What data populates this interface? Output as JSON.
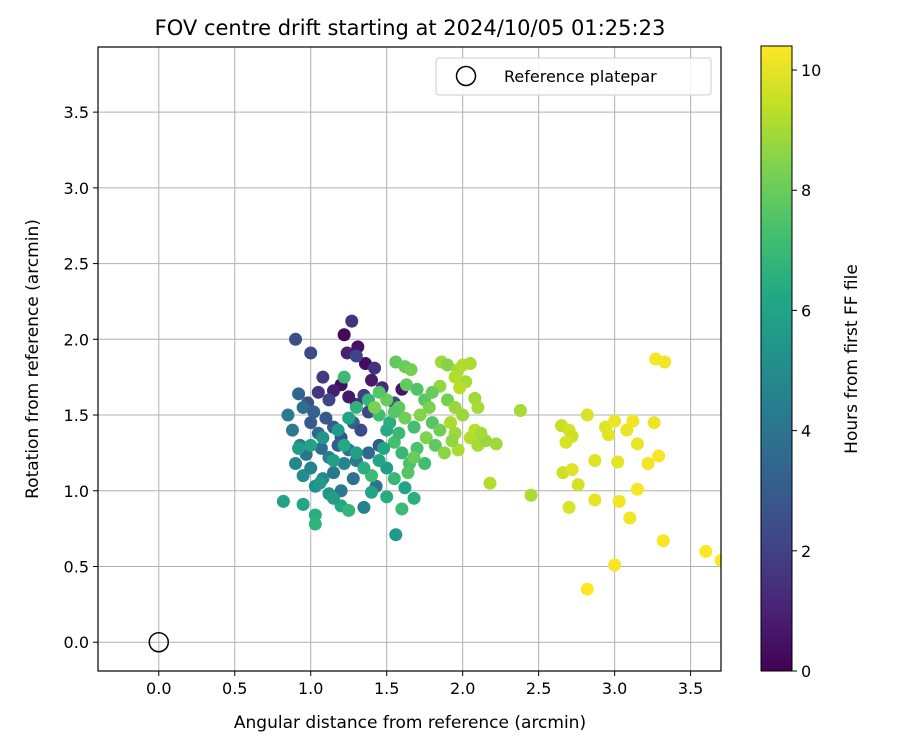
{
  "chart_data": {
    "type": "scatter",
    "title": "FOV centre drift starting at 2024/10/05 01:25:23",
    "xlabel": "Angular distance from reference (arcmin)",
    "ylabel": "Rotation from reference (arcmin)",
    "xlim": [
      -0.4,
      3.7
    ],
    "ylim": [
      -0.19,
      3.93
    ],
    "x_ticks": [
      "0.0",
      "0.5",
      "1.0",
      "1.5",
      "2.0",
      "2.5",
      "3.0",
      "3.5"
    ],
    "y_ticks": [
      "0.0",
      "0.5",
      "1.0",
      "1.5",
      "2.0",
      "2.5",
      "3.0",
      "3.5"
    ],
    "grid": true,
    "legend_position": "top-right",
    "reference_point": {
      "name": "Reference platepar",
      "x": 0.0,
      "y": 0.0,
      "marker": "open-circle"
    },
    "colorbar": {
      "label": "Hours from first FF file",
      "colormap": "viridis",
      "range": [
        0,
        10.4
      ],
      "ticks": [
        "0",
        "2",
        "4",
        "6",
        "8",
        "10"
      ]
    },
    "series": [
      {
        "color_by": "hours",
        "points": [
          [
            1.22,
            2.03,
            0.2
          ],
          [
            1.27,
            2.12,
            1.5
          ],
          [
            1.31,
            1.95,
            0.5
          ],
          [
            1.24,
            1.91,
            1.0
          ],
          [
            1.36,
            1.84,
            0.3
          ],
          [
            1.3,
            1.89,
            2.0
          ],
          [
            0.9,
            2.0,
            2.5
          ],
          [
            1.0,
            1.91,
            2.3
          ],
          [
            1.08,
            1.75,
            1.8
          ],
          [
            1.42,
            1.81,
            1.5
          ],
          [
            1.4,
            1.73,
            0.8
          ],
          [
            1.47,
            1.68,
            1.2
          ],
          [
            1.6,
            1.67,
            0.6
          ],
          [
            1.2,
            1.7,
            0.4
          ],
          [
            1.15,
            1.66,
            0.9
          ],
          [
            1.05,
            1.65,
            1.6
          ],
          [
            1.12,
            1.6,
            2.1
          ],
          [
            0.98,
            1.58,
            2.6
          ],
          [
            1.3,
            1.57,
            1.4
          ],
          [
            1.25,
            1.62,
            0.7
          ],
          [
            1.35,
            1.63,
            1.9
          ],
          [
            0.92,
            1.64,
            3.4
          ],
          [
            0.95,
            1.55,
            3.8
          ],
          [
            1.02,
            1.52,
            3.2
          ],
          [
            1.1,
            1.48,
            2.9
          ],
          [
            0.88,
            1.4,
            4.2
          ],
          [
            1.05,
            1.38,
            3.6
          ],
          [
            1.15,
            1.42,
            3.0
          ],
          [
            1.2,
            1.35,
            2.7
          ],
          [
            1.28,
            1.45,
            3.3
          ],
          [
            1.33,
            1.4,
            2.4
          ],
          [
            0.93,
            1.3,
            4.5
          ],
          [
            0.97,
            1.24,
            4.0
          ],
          [
            1.07,
            1.28,
            3.7
          ],
          [
            1.12,
            1.22,
            4.4
          ],
          [
            1.18,
            1.3,
            3.1
          ],
          [
            1.25,
            1.27,
            3.9
          ],
          [
            1.3,
            1.2,
            4.3
          ],
          [
            1.38,
            1.25,
            3.5
          ],
          [
            1.45,
            1.3,
            2.8
          ],
          [
            0.9,
            1.18,
            4.8
          ],
          [
            0.95,
            1.1,
            5.0
          ],
          [
            1.0,
            1.15,
            4.6
          ],
          [
            1.08,
            1.08,
            4.9
          ],
          [
            1.15,
            1.12,
            4.1
          ],
          [
            1.22,
            1.18,
            4.7
          ],
          [
            1.03,
            1.03,
            5.2
          ],
          [
            1.12,
            0.98,
            5.4
          ],
          [
            1.2,
            1.0,
            4.2
          ],
          [
            1.28,
            1.08,
            4.0
          ],
          [
            1.35,
            0.89,
            4.5
          ],
          [
            1.43,
            1.03,
            3.9
          ],
          [
            0.85,
            1.5,
            4.3
          ],
          [
            1.0,
            1.45,
            3.0
          ],
          [
            1.38,
            1.52,
            2.2
          ],
          [
            1.55,
            1.58,
            2.5
          ],
          [
            0.82,
            0.93,
            6.0
          ],
          [
            0.95,
            0.91,
            6.2
          ],
          [
            1.03,
            0.84,
            6.5
          ],
          [
            1.03,
            0.78,
            6.7
          ],
          [
            1.2,
            0.9,
            6.3
          ],
          [
            1.25,
            0.87,
            6.8
          ],
          [
            1.15,
            0.95,
            5.8
          ],
          [
            1.06,
            1.05,
            5.6
          ],
          [
            1.4,
            0.99,
            6.1
          ],
          [
            1.5,
            0.96,
            6.4
          ],
          [
            1.56,
            0.71,
            5.5
          ],
          [
            1.6,
            0.88,
            7.0
          ],
          [
            1.68,
            0.95,
            6.6
          ],
          [
            1.62,
            1.02,
            6.0
          ],
          [
            1.55,
            1.08,
            6.9
          ],
          [
            1.5,
            1.15,
            5.7
          ],
          [
            1.45,
            1.2,
            6.2
          ],
          [
            1.4,
            1.1,
            7.1
          ],
          [
            1.35,
            1.15,
            6.5
          ],
          [
            1.3,
            1.25,
            5.9
          ],
          [
            1.22,
            1.3,
            6.3
          ],
          [
            1.18,
            1.4,
            5.6
          ],
          [
            1.25,
            1.48,
            6.0
          ],
          [
            1.3,
            1.55,
            6.7
          ],
          [
            1.22,
            1.75,
            7.0
          ],
          [
            1.38,
            1.6,
            6.8
          ],
          [
            1.45,
            1.5,
            7.2
          ],
          [
            1.5,
            1.4,
            6.4
          ],
          [
            1.55,
            1.32,
            7.3
          ],
          [
            1.6,
            1.25,
            6.9
          ],
          [
            1.65,
            1.18,
            7.4
          ],
          [
            1.48,
            1.28,
            6.1
          ],
          [
            0.92,
            1.28,
            5.8
          ],
          [
            1.0,
            1.3,
            6.0
          ],
          [
            1.08,
            1.35,
            5.4
          ],
          [
            1.15,
            1.2,
            5.9
          ],
          [
            1.52,
            1.45,
            6.5
          ],
          [
            1.58,
            1.38,
            7.0
          ],
          [
            1.56,
            1.85,
            7.8
          ],
          [
            1.62,
            1.82,
            8.0
          ],
          [
            1.66,
            1.8,
            8.2
          ],
          [
            1.63,
            1.7,
            7.9
          ],
          [
            1.7,
            1.67,
            7.5
          ],
          [
            1.75,
            1.6,
            7.7
          ],
          [
            1.78,
            1.55,
            8.3
          ],
          [
            1.72,
            1.5,
            8.5
          ],
          [
            1.8,
            1.45,
            7.6
          ],
          [
            1.85,
            1.4,
            8.1
          ],
          [
            1.76,
            1.35,
            8.4
          ],
          [
            1.82,
            1.3,
            7.8
          ],
          [
            1.88,
            1.25,
            8.6
          ],
          [
            1.7,
            1.28,
            7.4
          ],
          [
            1.68,
            1.22,
            8.0
          ],
          [
            1.75,
            1.18,
            7.2
          ],
          [
            1.64,
            1.12,
            7.6
          ],
          [
            1.85,
            1.69,
            8.7
          ],
          [
            1.9,
            1.6,
            8.2
          ],
          [
            1.95,
            1.55,
            8.8
          ],
          [
            1.86,
            1.85,
            8.9
          ],
          [
            1.9,
            1.83,
            8.5
          ],
          [
            1.8,
            1.65,
            8.0
          ],
          [
            1.58,
            1.55,
            7.8
          ],
          [
            1.62,
            1.48,
            8.1
          ],
          [
            1.68,
            1.42,
            7.3
          ],
          [
            1.55,
            1.52,
            7.7
          ],
          [
            1.5,
            1.6,
            8.0
          ],
          [
            1.45,
            1.65,
            7.6
          ],
          [
            1.42,
            1.55,
            8.3
          ],
          [
            1.97,
            1.8,
            9.0
          ],
          [
            2.0,
            1.83,
            9.2
          ],
          [
            2.05,
            1.84,
            9.1
          ],
          [
            2.02,
            1.72,
            9.0
          ],
          [
            1.98,
            1.68,
            9.3
          ],
          [
            1.95,
            1.75,
            9.2
          ],
          [
            2.08,
            1.61,
            8.9
          ],
          [
            2.1,
            1.55,
            9.0
          ],
          [
            2.0,
            1.5,
            8.8
          ],
          [
            1.92,
            1.45,
            9.1
          ],
          [
            1.95,
            1.38,
            8.9
          ],
          [
            2.05,
            1.35,
            9.2
          ],
          [
            2.1,
            1.3,
            9.0
          ],
          [
            2.15,
            1.33,
            8.8
          ],
          [
            2.18,
            1.05,
            9.2
          ],
          [
            2.22,
            1.31,
            8.9
          ],
          [
            1.97,
            1.27,
            9.1
          ],
          [
            1.93,
            1.33,
            8.7
          ],
          [
            2.38,
            1.53,
            9.0
          ],
          [
            2.45,
            0.97,
            9.1
          ],
          [
            2.08,
            1.4,
            9.3
          ],
          [
            2.12,
            1.38,
            9.0
          ],
          [
            2.65,
            1.43,
            9.5
          ],
          [
            2.7,
            1.4,
            9.7
          ],
          [
            2.72,
            1.36,
            9.6
          ],
          [
            2.68,
            1.32,
            9.8
          ],
          [
            2.66,
            1.12,
            9.6
          ],
          [
            2.72,
            1.14,
            9.9
          ],
          [
            2.7,
            0.89,
            9.8
          ],
          [
            2.76,
            1.04,
            9.7
          ],
          [
            2.82,
            1.5,
            9.8
          ],
          [
            2.87,
            1.2,
            9.9
          ],
          [
            2.87,
            0.94,
            10.0
          ],
          [
            2.94,
            1.42,
            9.9
          ],
          [
            2.96,
            1.37,
            10.0
          ],
          [
            3.0,
            1.46,
            10.1
          ],
          [
            3.02,
            1.19,
            10.0
          ],
          [
            3.03,
            0.93,
            10.2
          ],
          [
            3.08,
            1.4,
            10.1
          ],
          [
            3.12,
            1.46,
            10.2
          ],
          [
            3.15,
            1.31,
            10.1
          ],
          [
            3.15,
            1.01,
            10.3
          ],
          [
            3.22,
            1.18,
            10.2
          ],
          [
            3.26,
            1.45,
            10.1
          ],
          [
            3.29,
            1.23,
            10.3
          ],
          [
            3.1,
            0.82,
            10.2
          ],
          [
            3.0,
            0.51,
            10.3
          ],
          [
            2.82,
            0.35,
            10.4
          ],
          [
            3.27,
            1.87,
            10.3
          ],
          [
            3.33,
            1.85,
            10.2
          ],
          [
            3.32,
            0.67,
            10.3
          ],
          [
            3.6,
            0.6,
            10.4
          ],
          [
            3.7,
            0.54,
            10.4
          ]
        ]
      }
    ]
  }
}
